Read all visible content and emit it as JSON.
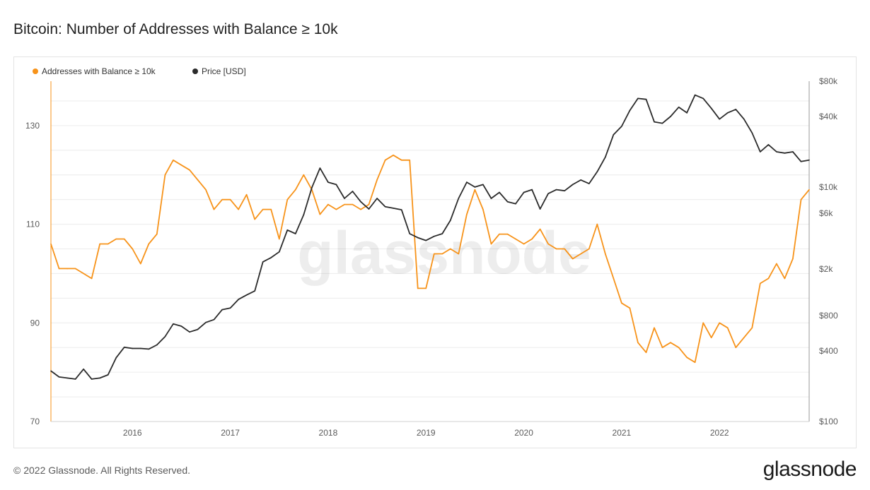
{
  "title": "Bitcoin: Number of Addresses with Balance ≥ 10k",
  "footer": {
    "copyright": "© 2022 Glassnode. All Rights Reserved.",
    "logo": "glassnode"
  },
  "watermark": "glassnode",
  "colors": {
    "orange": "#f7931a",
    "price": "#2b2b2b",
    "grid": "#ececec",
    "text": "#5b5b5b"
  },
  "chart_data": {
    "type": "line",
    "title": "Bitcoin: Number of Addresses with Balance ≥ 10k",
    "legend_position": "top-left",
    "grid": true,
    "x_range": [
      "2015-03",
      "2022-12"
    ],
    "x_ticks": [
      "2016",
      "2017",
      "2018",
      "2019",
      "2020",
      "2021",
      "2022"
    ],
    "y_left": {
      "ticks": [
        70,
        90,
        110,
        130
      ],
      "range": [
        70,
        139
      ]
    },
    "y_right": {
      "scale": "log",
      "ticks": [
        100,
        400,
        800,
        2000,
        6000,
        10000,
        40000,
        80000
      ],
      "tick_labels": [
        "$100",
        "$400",
        "$800",
        "$2k",
        "$6k",
        "$10k",
        "$40k",
        "$80k"
      ],
      "range": [
        100,
        80000
      ]
    },
    "series": [
      {
        "name": "Addresses with Balance ≥ 10k",
        "axis": "left",
        "color": "#f7931a",
        "x": [
          "2015-03",
          "2015-04",
          "2015-05",
          "2015-06",
          "2015-07",
          "2015-08",
          "2015-09",
          "2015-10",
          "2015-11",
          "2015-12",
          "2016-01",
          "2016-02",
          "2016-03",
          "2016-04",
          "2016-05",
          "2016-06",
          "2016-07",
          "2016-08",
          "2016-09",
          "2016-10",
          "2016-11",
          "2016-12",
          "2017-01",
          "2017-02",
          "2017-03",
          "2017-04",
          "2017-05",
          "2017-06",
          "2017-07",
          "2017-08",
          "2017-09",
          "2017-10",
          "2017-11",
          "2017-12",
          "2018-01",
          "2018-02",
          "2018-03",
          "2018-04",
          "2018-05",
          "2018-06",
          "2018-07",
          "2018-08",
          "2018-09",
          "2018-10",
          "2018-11",
          "2018-12",
          "2019-01",
          "2019-02",
          "2019-03",
          "2019-04",
          "2019-05",
          "2019-06",
          "2019-07",
          "2019-08",
          "2019-09",
          "2019-10",
          "2019-11",
          "2019-12",
          "2020-01",
          "2020-02",
          "2020-03",
          "2020-04",
          "2020-05",
          "2020-06",
          "2020-07",
          "2020-08",
          "2020-09",
          "2020-10",
          "2020-11",
          "2020-12",
          "2021-01",
          "2021-02",
          "2021-03",
          "2021-04",
          "2021-05",
          "2021-06",
          "2021-07",
          "2021-08",
          "2021-09",
          "2021-10",
          "2021-11",
          "2021-12",
          "2022-01",
          "2022-02",
          "2022-03",
          "2022-04",
          "2022-05",
          "2022-06",
          "2022-07",
          "2022-08",
          "2022-09",
          "2022-10",
          "2022-11",
          "2022-12"
        ],
        "values": [
          106,
          101,
          101,
          101,
          100,
          99,
          106,
          106,
          107,
          107,
          105,
          102,
          106,
          108,
          120,
          123,
          122,
          121,
          119,
          117,
          113,
          115,
          115,
          113,
          116,
          111,
          113,
          113,
          107,
          115,
          117,
          120,
          117,
          112,
          114,
          113,
          114,
          114,
          113,
          114,
          119,
          123,
          124,
          123,
          123,
          97,
          97,
          104,
          104,
          105,
          104,
          112,
          117,
          113,
          106,
          108,
          108,
          107,
          106,
          107,
          109,
          106,
          105,
          105,
          103,
          104,
          105,
          110,
          104,
          99,
          94,
          93,
          86,
          84,
          89,
          85,
          86,
          85,
          83,
          82,
          90,
          87,
          90,
          89,
          85,
          87,
          89,
          98,
          99,
          102,
          99,
          103,
          115,
          117
        ]
      },
      {
        "name": "Price [USD]",
        "axis": "right",
        "color": "#2b2b2b",
        "x": [
          "2015-03",
          "2015-04",
          "2015-05",
          "2015-06",
          "2015-07",
          "2015-08",
          "2015-09",
          "2015-10",
          "2015-11",
          "2015-12",
          "2016-01",
          "2016-02",
          "2016-03",
          "2016-04",
          "2016-05",
          "2016-06",
          "2016-07",
          "2016-08",
          "2016-09",
          "2016-10",
          "2016-11",
          "2016-12",
          "2017-01",
          "2017-02",
          "2017-03",
          "2017-04",
          "2017-05",
          "2017-06",
          "2017-07",
          "2017-08",
          "2017-09",
          "2017-10",
          "2017-11",
          "2017-12",
          "2018-01",
          "2018-02",
          "2018-03",
          "2018-04",
          "2018-05",
          "2018-06",
          "2018-07",
          "2018-08",
          "2018-09",
          "2018-10",
          "2018-11",
          "2018-12",
          "2019-01",
          "2019-02",
          "2019-03",
          "2019-04",
          "2019-05",
          "2019-06",
          "2019-07",
          "2019-08",
          "2019-09",
          "2019-10",
          "2019-11",
          "2019-12",
          "2020-01",
          "2020-02",
          "2020-03",
          "2020-04",
          "2020-05",
          "2020-06",
          "2020-07",
          "2020-08",
          "2020-09",
          "2020-10",
          "2020-11",
          "2020-12",
          "2021-01",
          "2021-02",
          "2021-03",
          "2021-04",
          "2021-05",
          "2021-06",
          "2021-07",
          "2021-08",
          "2021-09",
          "2021-10",
          "2021-11",
          "2021-12",
          "2022-01",
          "2022-02",
          "2022-03",
          "2022-04",
          "2022-05",
          "2022-06",
          "2022-07",
          "2022-08",
          "2022-09",
          "2022-10",
          "2022-11",
          "2022-12"
        ],
        "values": [
          270,
          240,
          235,
          230,
          280,
          230,
          235,
          250,
          350,
          430,
          420,
          420,
          415,
          450,
          530,
          680,
          650,
          580,
          610,
          700,
          740,
          900,
          930,
          1100,
          1200,
          1300,
          2300,
          2500,
          2800,
          4300,
          4000,
          5800,
          9900,
          14500,
          11000,
          10500,
          8000,
          9200,
          7500,
          6500,
          8000,
          6800,
          6600,
          6400,
          4000,
          3700,
          3500,
          3800,
          4000,
          5200,
          8000,
          11000,
          10000,
          10500,
          8000,
          9000,
          7500,
          7200,
          9000,
          9500,
          6500,
          8800,
          9500,
          9300,
          10500,
          11500,
          10700,
          13500,
          18000,
          28000,
          33000,
          45000,
          57000,
          56000,
          36000,
          35000,
          40000,
          48000,
          43000,
          61000,
          57000,
          47000,
          38000,
          43000,
          46000,
          38000,
          29000,
          20000,
          23000,
          20000,
          19500,
          20000,
          16500,
          17000
        ]
      }
    ]
  }
}
